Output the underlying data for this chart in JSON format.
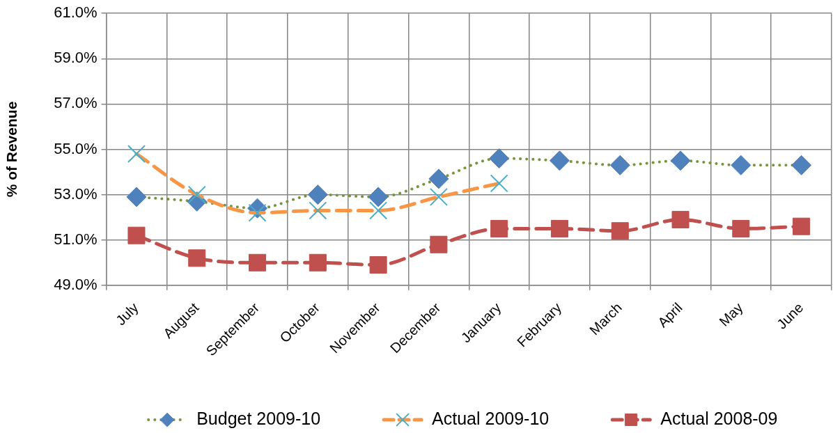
{
  "chart_data": {
    "type": "line",
    "ylabel": "% of Revenue",
    "categories": [
      "July",
      "August",
      "September",
      "October",
      "November",
      "December",
      "January",
      "February",
      "March",
      "April",
      "May",
      "June"
    ],
    "series": [
      {
        "name": "Budget 2009-10",
        "color": "#77933c",
        "colors": [
          "#4f81bd",
          "#4f81bd",
          "#4f81bd",
          "#4f81bd",
          "#4f81bd",
          "#4f81bd",
          "#4f81bd",
          "#4f81bd",
          "#4f81bd",
          "#4f81bd",
          "#4f81bd",
          "#4f81bd"
        ],
        "marker": "diamond",
        "line_style": "dotted",
        "values": [
          52.9,
          52.7,
          52.4,
          53.0,
          52.9,
          53.7,
          54.6,
          54.5,
          54.3,
          54.5,
          54.3,
          54.3
        ]
      },
      {
        "name": "Actual 2009-10",
        "color": "#f79646",
        "colors": [
          "#4bacc6",
          "#4bacc6",
          "#4bacc6",
          "#4bacc6",
          "#4bacc6",
          "#4bacc6",
          "#4bacc6",
          "#4bacc6",
          "#4bacc6",
          "#4bacc6",
          "#4bacc6",
          "#4bacc6"
        ],
        "marker": "cross",
        "line_style": "dashed",
        "values": [
          54.8,
          53.0,
          52.2,
          52.3,
          52.3,
          52.9,
          53.5,
          null,
          null,
          null,
          null,
          null
        ]
      },
      {
        "name": "Actual 2008-09",
        "color": "#c0504d",
        "colors": [
          "#c0504d",
          "#c0504d",
          "#c0504d",
          "#c0504d",
          "#c0504d",
          "#c0504d",
          "#c0504d",
          "#c0504d",
          "#c0504d",
          "#c0504d",
          "#c0504d",
          "#c0504d"
        ],
        "marker": "square",
        "line_style": "dashed",
        "values": [
          51.2,
          50.2,
          50.0,
          50.0,
          49.9,
          50.8,
          51.5,
          51.5,
          51.4,
          51.9,
          51.5,
          51.6
        ]
      }
    ],
    "ylim": [
      49,
      61
    ],
    "yticks": [
      {
        "value": 49,
        "label": "49.0%"
      },
      {
        "value": 51,
        "label": "51.0%"
      },
      {
        "value": 53,
        "label": "53.0%"
      },
      {
        "value": 55,
        "label": "55.0%"
      },
      {
        "value": 57,
        "label": "57.0%"
      },
      {
        "value": 59,
        "label": "59.0%"
      },
      {
        "value": 61,
        "label": "61.0%"
      }
    ],
    "grid": true,
    "legend": "bottom"
  }
}
